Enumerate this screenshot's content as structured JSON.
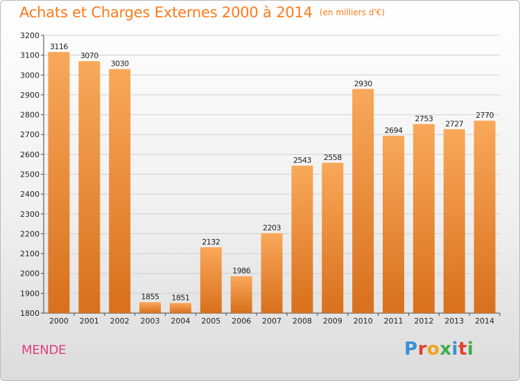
{
  "header": {
    "title": "Achats et Charges Externes 2000 à 2014",
    "unit": "(en milliers d'€)"
  },
  "footer": {
    "city": "MENDE",
    "logo": [
      "P",
      "r",
      "o",
      "x",
      "i",
      "t",
      "i"
    ]
  },
  "colors": {
    "title": "#ff7a1a",
    "city": "#e0407a",
    "bar_top": "#f9a85a",
    "bar_bottom": "#d8701c",
    "logo": [
      "#3a8fd6",
      "#e2402f",
      "#f1a21b",
      "#3fae49",
      "#3a8fd6",
      "#e2402f",
      "#3fae49"
    ]
  },
  "chart_data": {
    "type": "bar",
    "title": "Achats et Charges Externes 2000 à 2014",
    "subtitle": "(en milliers d'€)",
    "categories": [
      "2000",
      "2001",
      "2002",
      "2003",
      "2004",
      "2005",
      "2006",
      "2007",
      "2008",
      "2009",
      "2010",
      "2011",
      "2012",
      "2013",
      "2014"
    ],
    "values": [
      3116,
      3070,
      3030,
      1855,
      1851,
      2132,
      1986,
      2203,
      2543,
      2558,
      2930,
      2694,
      2753,
      2727,
      2770
    ],
    "ylim": [
      1800,
      3200
    ],
    "yticks": [
      1800,
      1900,
      2000,
      2100,
      2200,
      2300,
      2400,
      2500,
      2600,
      2700,
      2800,
      2900,
      3000,
      3100,
      3200
    ],
    "grid": true,
    "legend": "none"
  }
}
